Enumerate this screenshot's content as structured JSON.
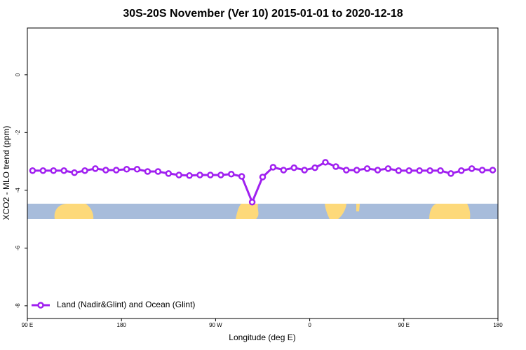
{
  "chart_data": {
    "type": "line",
    "title": "30S-20S November (Ver 10)   2015-01-01 to 2020-12-18",
    "x_label": "Longitude (deg E)",
    "y_label": "XCO2 - MLO trend (ppm)",
    "x": [
      95,
      105,
      115,
      125,
      135,
      145,
      155,
      165,
      175,
      185,
      195,
      205,
      215,
      225,
      235,
      245,
      255,
      265,
      275,
      285,
      295,
      305,
      315,
      325,
      335,
      345,
      355,
      365,
      375,
      385,
      395,
      405,
      415,
      425,
      435,
      445,
      455,
      465,
      475,
      485,
      495,
      505,
      515,
      525,
      535
    ],
    "series": [
      {
        "name": "Land (Nadir&Glint) and Ocean (Glint)",
        "color": "#a020f0",
        "values": [
          -3.32,
          -3.32,
          -3.32,
          -3.32,
          -3.39,
          -3.32,
          -3.25,
          -3.3,
          -3.3,
          -3.27,
          -3.27,
          -3.35,
          -3.35,
          -3.42,
          -3.47,
          -3.49,
          -3.47,
          -3.47,
          -3.47,
          -3.44,
          -3.52,
          -4.41,
          -3.54,
          -3.2,
          -3.3,
          -3.22,
          -3.3,
          -3.22,
          -3.03,
          -3.18,
          -3.3,
          -3.3,
          -3.25,
          -3.3,
          -3.25,
          -3.32,
          -3.32,
          -3.32,
          -3.32,
          -3.32,
          -3.42,
          -3.32,
          -3.25,
          -3.3,
          -3.3
        ]
      }
    ],
    "xlim": [
      90,
      540
    ],
    "xticks": [
      {
        "value": 90,
        "label": "90 E"
      },
      180,
      {
        "value": 270,
        "label": "90 W"
      },
      {
        "value": 360,
        "label": "0"
      },
      {
        "value": 450,
        "label": "90 E"
      },
      {
        "value": 540,
        "label": "180"
      }
    ],
    "ylim": [
      -8.44,
      1.62
    ],
    "yticks": [
      0,
      -2,
      -4,
      -6,
      -8
    ],
    "legend": "bottom-left"
  }
}
